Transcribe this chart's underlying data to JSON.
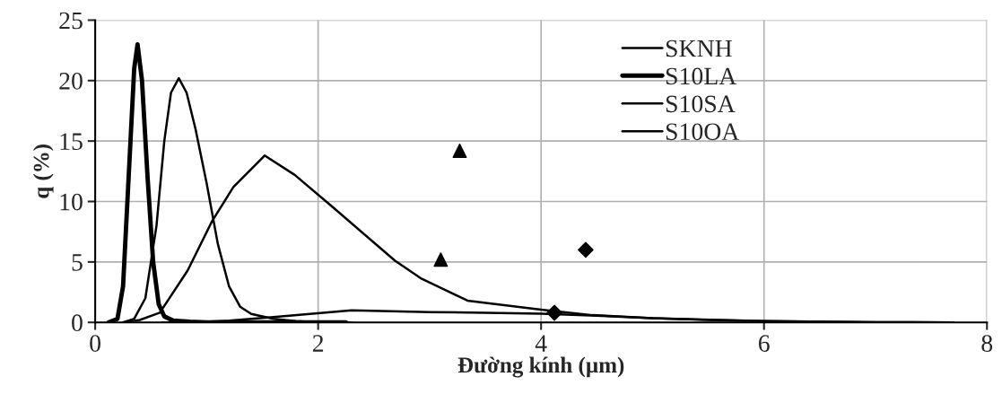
{
  "chart_data": {
    "type": "line",
    "xlabel": "Đường kính (µm)",
    "ylabel": "q (%)",
    "xlim": [
      0,
      8
    ],
    "xticks": [
      0,
      2,
      4,
      6,
      8
    ],
    "ylim": [
      0,
      25
    ],
    "yticks": [
      0,
      5,
      10,
      15,
      20,
      25
    ],
    "grid": true,
    "legend": "top right",
    "series": [
      {
        "name": "SKNH",
        "color": "#000000",
        "x": [
          0.6,
          0.9,
          1.2,
          1.6,
          2.3,
          3.0,
          3.5,
          4.0,
          4.5,
          5.0,
          5.5,
          6.0,
          7.0,
          7.7
        ],
        "values": [
          0,
          0.02,
          0.15,
          0.45,
          1.0,
          0.85,
          0.8,
          0.72,
          0.55,
          0.35,
          0.2,
          0.1,
          0.02,
          0
        ]
      },
      {
        "name": "S10LA",
        "color": "#000000",
        "x": [
          0.12,
          0.2,
          0.25,
          0.3,
          0.35,
          0.38,
          0.42,
          0.47,
          0.52,
          0.57,
          0.62,
          0.7,
          0.85,
          1.0,
          2.25
        ],
        "values": [
          0,
          0.3,
          3,
          12,
          21,
          23,
          20,
          12,
          5,
          1.5,
          0.5,
          0.15,
          0.05,
          0,
          0
        ]
      },
      {
        "name": "S10SA",
        "color": "#000000",
        "x": [
          0.25,
          0.35,
          0.45,
          0.55,
          0.62,
          0.68,
          0.75,
          0.82,
          0.9,
          1.0,
          1.1,
          1.2,
          1.3,
          1.4,
          1.6,
          1.8,
          2.0,
          2.3
        ],
        "values": [
          0,
          0.3,
          2,
          8,
          15,
          19,
          20.2,
          19,
          16,
          11.5,
          6.5,
          3,
          1.3,
          0.7,
          0.3,
          0.1,
          0.02,
          0
        ]
      },
      {
        "name": "S10OA",
        "color": "#000000",
        "x": [
          0.25,
          0.4,
          0.58,
          0.83,
          1.05,
          1.24,
          1.52,
          1.79,
          2.11,
          2.69,
          2.93,
          3.34,
          4.0,
          4.46,
          5.0,
          6.0,
          7.0,
          7.7
        ],
        "values": [
          0,
          0.2,
          0.8,
          4.3,
          8.4,
          11.2,
          13.8,
          12.2,
          9.7,
          5.1,
          3.6,
          1.8,
          1.06,
          0.6,
          0.35,
          0.1,
          0.02,
          0
        ]
      },
      {
        "type": "scatter",
        "color": "#000000",
        "marker": "triangle",
        "x": [
          3.27,
          3.1
        ],
        "values": [
          14.2,
          5.2
        ]
      },
      {
        "type": "scatter",
        "color": "#000000",
        "marker": "diamond",
        "x": [
          4.4,
          4.12
        ],
        "values": [
          6.0,
          0.8
        ]
      }
    ]
  }
}
